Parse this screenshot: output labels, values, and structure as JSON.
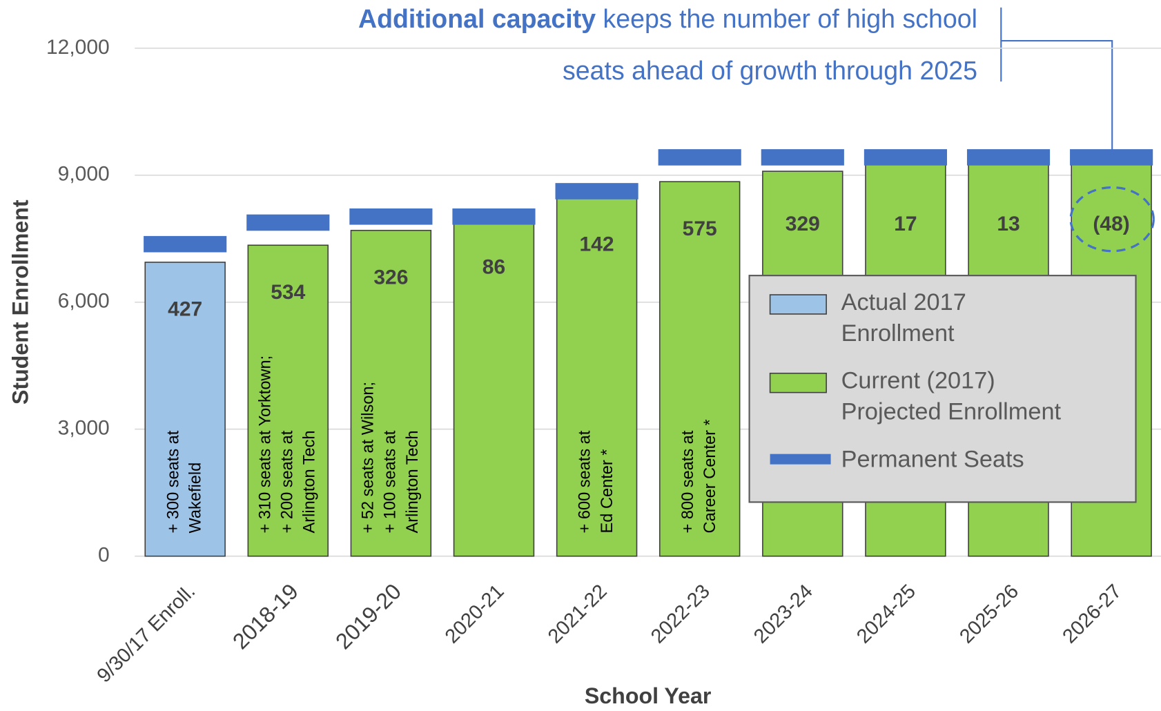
{
  "chart_data": {
    "type": "bar",
    "stacked_marker": true,
    "annotation": {
      "bold": "Additional capacity",
      "rest": " keeps the number of high school",
      "line2": "seats ahead of growth through 2025"
    },
    "xlabel": "School Year",
    "ylabel": "Student Enrollment",
    "categories": [
      "9/30/17 Enroll.",
      "2018-19",
      "2019-20",
      "2020-21",
      "2021-22",
      "2022-23",
      "2023-24",
      "2024-25",
      "2025-26",
      "2026-27"
    ],
    "series": [
      {
        "name": "Actual 2017 Enrollment",
        "color": "#9dc3e6",
        "values": [
          6944,
          null,
          null,
          null,
          null,
          null,
          null,
          null,
          null,
          null
        ]
      },
      {
        "name": "Current (2017) Projected Enrollment",
        "color": "#92d050",
        "values": [
          null,
          7346,
          7696,
          7936,
          8480,
          8847,
          9093,
          9405,
          9409,
          9470
        ]
      },
      {
        "name": "Permanent Seats",
        "color": "#4472c4",
        "values": [
          7371,
          7880,
          8022,
          8022,
          8622,
          9422,
          9422,
          9422,
          9422,
          9422
        ]
      }
    ],
    "gap_labels": [
      "427",
      "534",
      "326",
      "86",
      "142",
      "575",
      "329",
      "17",
      "13",
      "(48)"
    ],
    "notes": [
      [
        "+ 300 seats at",
        "Wakefield"
      ],
      [
        "+ 310 seats at Yorktown;",
        "+ 200 seats at",
        "Arlington Tech"
      ],
      [
        "+ 52 seats at Wilson;",
        "+ 100 seats at",
        "Arlington Tech"
      ],
      null,
      [
        "+ 600 seats at",
        "Ed Center *"
      ],
      [
        "+ 800 seats at",
        "Career Center *"
      ],
      null,
      null,
      null,
      null
    ],
    "ylim": [
      0,
      12000
    ],
    "yticks": [
      {
        "value": 0,
        "label": "0"
      },
      {
        "value": 3000,
        "label": "3,000"
      },
      {
        "value": 6000,
        "label": "6,000"
      },
      {
        "value": 9000,
        "label": "9,000"
      },
      {
        "value": 12000,
        "label": "12,000"
      }
    ],
    "grid": true
  }
}
